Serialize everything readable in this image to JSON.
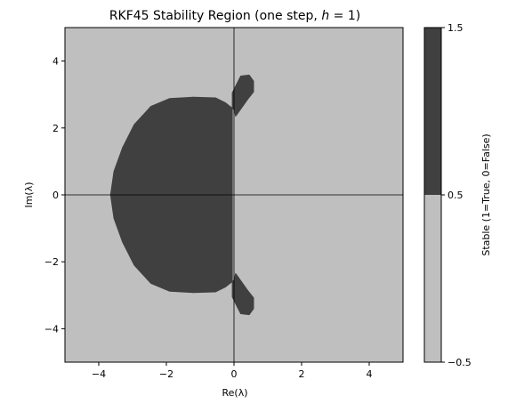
{
  "chart_data": {
    "type": "heatmap",
    "title": "RKF45 Stability Region (one step, h = 1)",
    "xlabel": "Re(λ)",
    "ylabel": "Im(λ)",
    "xlim": [
      -5,
      5
    ],
    "ylim": [
      -5,
      5
    ],
    "xticks": [
      -4,
      -2,
      0,
      2,
      4
    ],
    "yticks": [
      -4,
      -2,
      0,
      2,
      4
    ],
    "xtick_labels": [
      "−4",
      "−2",
      "0",
      "2",
      "4"
    ],
    "ytick_labels": [
      "−4",
      "−2",
      "0",
      "2",
      "4"
    ],
    "grid": false,
    "reference_lines": {
      "x": 0,
      "y": 0
    },
    "colors": {
      "stable": "#404040",
      "unstable": "#bfbfbf",
      "lines": "#000000"
    },
    "region_boundary": [
      [
        -0.05,
        2.0
      ],
      [
        -0.05,
        3.05
      ],
      [
        0.1,
        3.35
      ],
      [
        0.2,
        3.55
      ],
      [
        0.45,
        3.58
      ],
      [
        0.58,
        3.4
      ],
      [
        0.58,
        3.08
      ],
      [
        0.4,
        2.85
      ],
      [
        0.05,
        2.35
      ],
      [
        0.0,
        2.55
      ],
      [
        -0.25,
        2.75
      ],
      [
        -0.55,
        2.9
      ],
      [
        -1.2,
        2.92
      ],
      [
        -1.9,
        2.88
      ],
      [
        -2.45,
        2.65
      ],
      [
        -2.95,
        2.1
      ],
      [
        -3.3,
        1.4
      ],
      [
        -3.55,
        0.7
      ],
      [
        -3.65,
        0.0
      ],
      [
        -3.55,
        -0.7
      ],
      [
        -3.3,
        -1.4
      ],
      [
        -2.95,
        -2.1
      ],
      [
        -2.45,
        -2.65
      ],
      [
        -1.9,
        -2.88
      ],
      [
        -1.2,
        -2.92
      ],
      [
        -0.55,
        -2.9
      ],
      [
        -0.25,
        -2.75
      ],
      [
        0.0,
        -2.55
      ],
      [
        0.05,
        -2.35
      ],
      [
        0.4,
        -2.85
      ],
      [
        0.58,
        -3.08
      ],
      [
        0.58,
        -3.4
      ],
      [
        0.45,
        -3.58
      ],
      [
        0.2,
        -3.55
      ],
      [
        0.1,
        -3.35
      ],
      [
        -0.05,
        -3.05
      ],
      [
        -0.05,
        -2.0
      ]
    ],
    "colorbar": {
      "label": "Stable (1=True, 0=False)",
      "ticks": [
        1.5,
        0.5,
        -0.5
      ],
      "tick_labels": [
        "1.5",
        "0.5",
        "−0.5"
      ],
      "range": [
        -0.5,
        1.5
      ],
      "segments": [
        {
          "from": -0.5,
          "to": 0.5,
          "color": "#bfbfbf"
        },
        {
          "from": 0.5,
          "to": 1.5,
          "color": "#404040"
        }
      ]
    }
  }
}
